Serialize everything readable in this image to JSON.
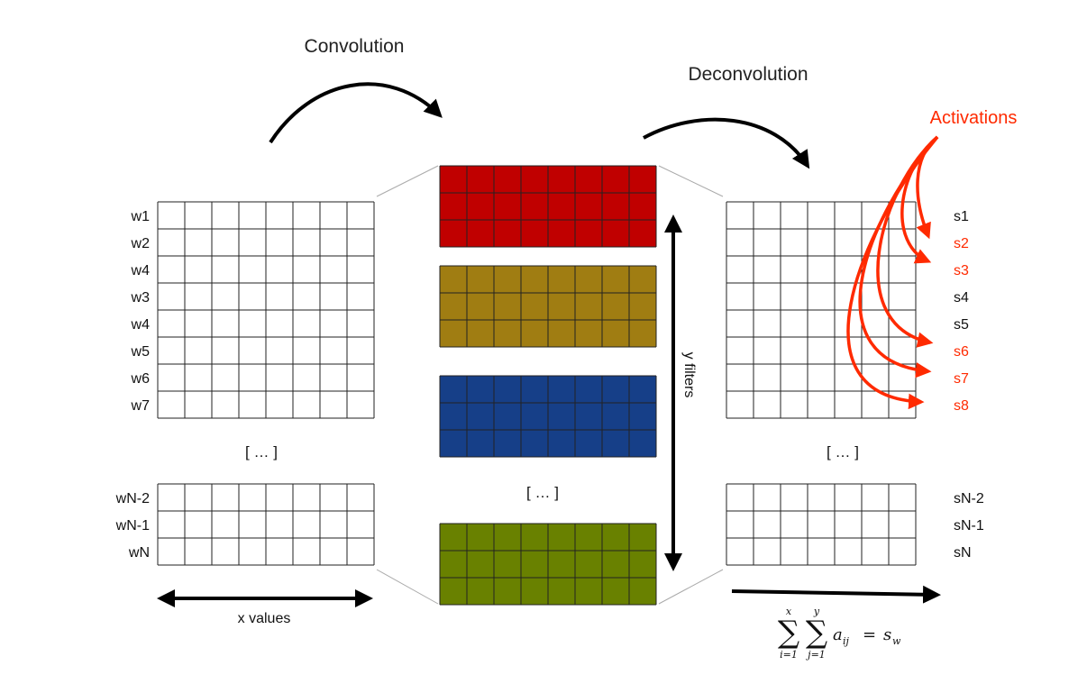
{
  "titles": {
    "convolution": "Convolution",
    "deconvolution": "Deconvolution",
    "activations": "Activations"
  },
  "axis_labels": {
    "x_values": "x values",
    "y_filters": "y filters"
  },
  "ellipsis": "[ … ]",
  "input_rows_top": [
    "w1",
    "w2",
    "w4",
    "w3",
    "w4",
    "w5",
    "w6",
    "w7"
  ],
  "input_rows_bottom": [
    "wN-2",
    "wN-1",
    "wN"
  ],
  "output_rows_top": [
    {
      "label": "s1",
      "highlight": false
    },
    {
      "label": "s2",
      "highlight": true
    },
    {
      "label": "s3",
      "highlight": true
    },
    {
      "label": "s4",
      "highlight": false
    },
    {
      "label": "s5",
      "highlight": false
    },
    {
      "label": "s6",
      "highlight": true
    },
    {
      "label": "s7",
      "highlight": true
    },
    {
      "label": "s8",
      "highlight": true
    }
  ],
  "output_rows_bottom": [
    "sN-2",
    "sN-1",
    "sN"
  ],
  "filters": [
    {
      "name": "filter-red",
      "color": "#c00000"
    },
    {
      "name": "filter-olive",
      "color": "#a07d12"
    },
    {
      "name": "filter-blue",
      "color": "#163f88"
    },
    {
      "name": "filter-green",
      "color": "#698100"
    }
  ],
  "formula": {
    "sum1_upper": "x",
    "sum1_lower": "i=1",
    "sum2_upper": "y",
    "sum2_lower": "j=1",
    "term": "a",
    "term_sub": "ij",
    "equals": "=",
    "result": "s",
    "result_sub": "w"
  },
  "colors": {
    "accent_red": "#ff2a00",
    "grid": "#222222"
  }
}
